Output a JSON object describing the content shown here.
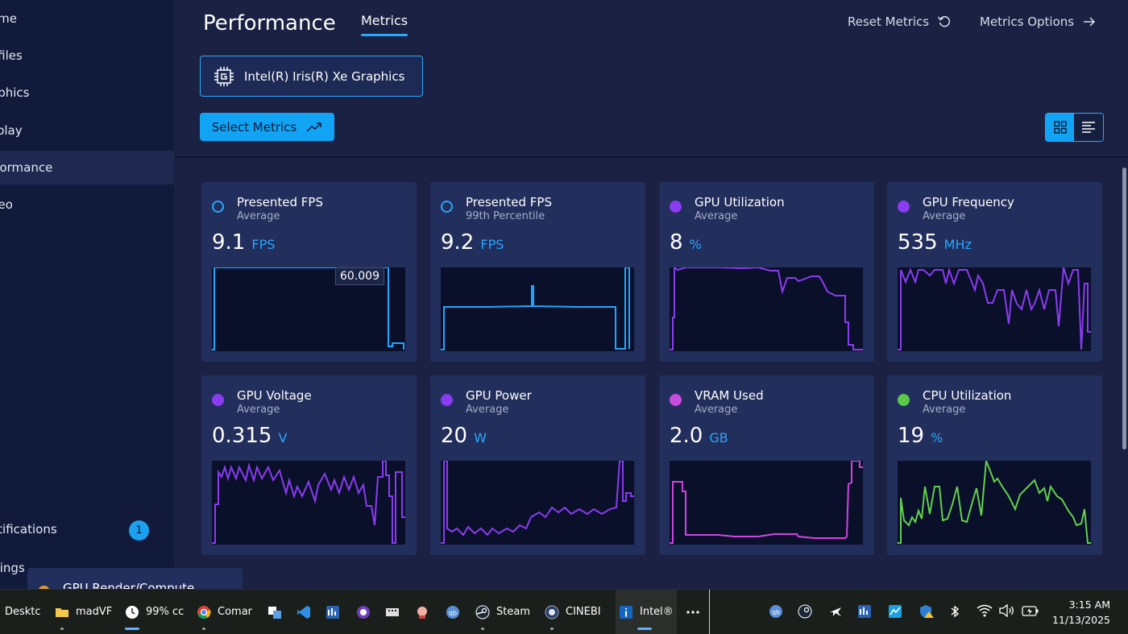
{
  "sidebar": {
    "items": [
      {
        "label": "ome"
      },
      {
        "label": "ofiles"
      },
      {
        "label": "aphics"
      },
      {
        "label": "splay"
      },
      {
        "label": "rformance",
        "active": true
      },
      {
        "label": "deo"
      },
      {
        "label": "otifications",
        "badge": "1"
      },
      {
        "label": "ttings"
      }
    ]
  },
  "header": {
    "title": "Performance",
    "tab": "Metrics",
    "reset_label": "Reset Metrics",
    "options_label": "Metrics Options",
    "gpu_name": "Intel(R) Iris(R) Xe Graphics",
    "select_label": "Select Metrics"
  },
  "cards": [
    {
      "title": "Presented FPS",
      "sub": "Average",
      "value": "9.1",
      "unit": "FPS",
      "dot_color": "#29a8ff",
      "dot_style": "ring",
      "line_color": "#21a6ff",
      "peak_label": "60.009"
    },
    {
      "title": "Presented FPS",
      "sub": "99th Percentile",
      "value": "9.2",
      "unit": "FPS",
      "dot_color": "#29a8ff",
      "dot_style": "ring",
      "line_color": "#21a6ff"
    },
    {
      "title": "GPU Utilization",
      "sub": "Average",
      "value": "8",
      "unit": "%",
      "dot_color": "#8a3cf0",
      "dot_style": "fill",
      "line_color": "#8a3cf0"
    },
    {
      "title": "GPU Frequency",
      "sub": "Average",
      "value": "535",
      "unit": "MHz",
      "dot_color": "#8a3cf0",
      "dot_style": "fill",
      "line_color": "#8a3cf0"
    },
    {
      "title": "GPU Voltage",
      "sub": "Average",
      "value": "0.315",
      "unit": "V",
      "dot_color": "#8a3cf0",
      "dot_style": "fill",
      "line_color": "#8a3cf0"
    },
    {
      "title": "GPU Power",
      "sub": "Average",
      "value": "20",
      "unit": "W",
      "dot_color": "#8a3cf0",
      "dot_style": "fill",
      "line_color": "#8a3cf0"
    },
    {
      "title": "VRAM Used",
      "sub": "Average",
      "value": "2.0",
      "unit": "GB",
      "dot_color": "#c84ee0",
      "dot_style": "fill",
      "line_color": "#d045e0"
    },
    {
      "title": "CPU Utilization",
      "sub": "Average",
      "value": "19",
      "unit": "%",
      "dot_color": "#5cc84a",
      "dot_style": "fill",
      "line_color": "#62d04c"
    }
  ],
  "partial_card": {
    "title": "GPU Render/Compute"
  },
  "taskbar": {
    "items": [
      {
        "label": "Desktc"
      },
      {
        "label": "madVF"
      },
      {
        "label": "99% cc"
      },
      {
        "label": "Comar"
      },
      {
        "label": "Steam"
      },
      {
        "label": "CINEBI"
      },
      {
        "label": "Intel®"
      }
    ],
    "time": "3:15 AM",
    "date": "11/13/2025"
  },
  "icons": {
    "reset": "reset-icon",
    "options_arrow": "arrow-right-icon",
    "gpu_chip": "gpu-chip-icon",
    "trend": "trend-up-icon",
    "grid_view": "grid-view-icon",
    "list_view": "list-view-icon"
  }
}
